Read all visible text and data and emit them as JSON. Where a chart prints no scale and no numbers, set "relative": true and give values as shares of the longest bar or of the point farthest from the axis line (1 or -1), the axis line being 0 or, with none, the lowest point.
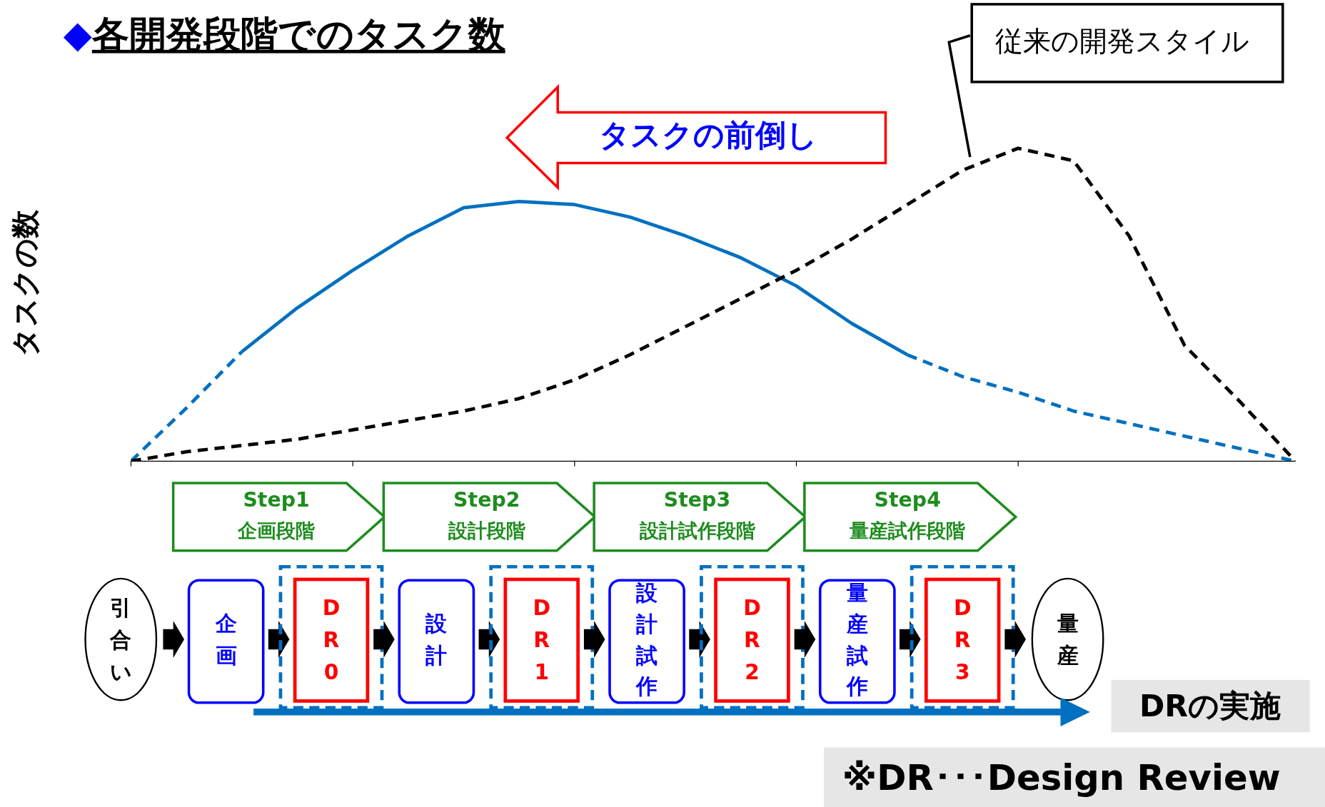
{
  "chart_data": {
    "type": "line",
    "title": "◆各開発段階でのタスク数",
    "ylabel": "タスクの数",
    "relative": true,
    "categories": [
      null,
      null,
      null,
      null,
      null,
      null,
      null,
      null,
      null,
      null,
      null,
      null,
      null,
      null,
      null,
      null,
      null,
      null,
      null,
      null,
      null,
      null
    ],
    "series": [
      {
        "color": "#0070c0",
        "line_style": "dashed",
        "values": [
          0,
          0.17,
          0.35,
          null,
          null,
          null,
          null,
          null,
          null,
          null,
          null,
          null,
          null,
          null,
          null,
          null,
          null,
          null,
          null,
          null,
          null,
          null
        ]
      },
      {
        "color": "#0070c0",
        "line_style": "solid",
        "values": [
          null,
          null,
          0.35,
          0.49,
          0.61,
          0.72,
          0.81,
          0.83,
          0.82,
          0.78,
          0.72,
          0.65,
          0.56,
          0.44,
          0.34,
          null,
          null,
          null,
          null,
          null,
          null,
          null
        ]
      },
      {
        "color": "#0070c0",
        "line_style": "dashed",
        "values": [
          null,
          null,
          null,
          null,
          null,
          null,
          null,
          null,
          null,
          null,
          null,
          null,
          null,
          null,
          0.34,
          0.27,
          0.22,
          0.16,
          0.12,
          0.08,
          0.04,
          0
        ]
      },
      {
        "color": "#000000",
        "line_style": "dashed",
        "values": [
          0,
          0.03,
          0.05,
          0.07,
          0.1,
          0.13,
          0.16,
          0.2,
          0.26,
          0.34,
          0.43,
          0.52,
          0.61,
          0.71,
          0.82,
          0.93,
          1,
          0.96,
          0.72,
          0.37,
          0.19,
          0
        ]
      }
    ],
    "annotations": [
      "従来の開発スタイル",
      "タスクの前倒し",
      "Step1",
      "企画段階",
      "Step2",
      "設計段階",
      "Step3",
      "設計試作段階",
      "Step4",
      "量産試作段階",
      "引合い",
      "企画",
      "DR0",
      "設計",
      "DR1",
      "設計試作",
      "DR2",
      "量産試作",
      "DR3",
      "量産",
      "DRの実施",
      "※DR･･･Design Review"
    ]
  }
}
